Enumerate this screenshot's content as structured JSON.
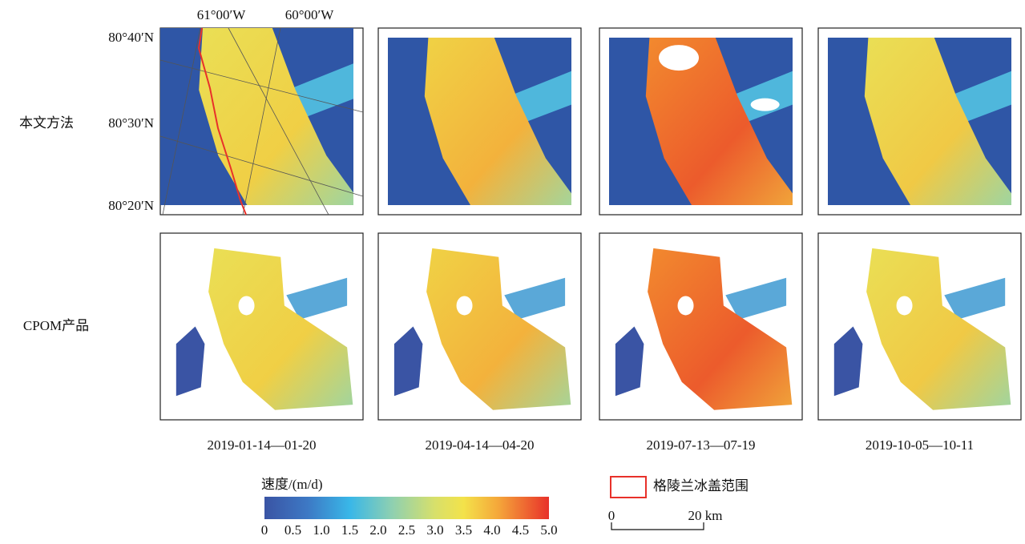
{
  "row_labels": [
    "本文方法",
    "CPOM产品"
  ],
  "columns": [
    "2019-01-14—01-20",
    "2019-04-14—04-20",
    "2019-07-13—07-19",
    "2019-10-05—10-11"
  ],
  "latitude_labels": [
    "80°40′N",
    "80°30′N",
    "80°20′N"
  ],
  "longitude_labels": [
    "61°00′W",
    "60°00′W"
  ],
  "colorbar": {
    "title": "速度/(m/d)",
    "range": [
      0,
      5
    ],
    "ticks": [
      0,
      0.5,
      {
        "value": 1,
        "label": "1.0"
      },
      1.5,
      {
        "value": 2,
        "label": "2.0"
      },
      2.5,
      {
        "value": 3,
        "label": "3.0"
      },
      3.5,
      {
        "value": 4,
        "label": "4.0"
      },
      4.5,
      {
        "value": 5,
        "label": "5.0"
      }
    ]
  },
  "legend": {
    "label": "格陵兰冰盖范围"
  },
  "scale_bar": {
    "start": "0",
    "end": "20 km"
  }
}
